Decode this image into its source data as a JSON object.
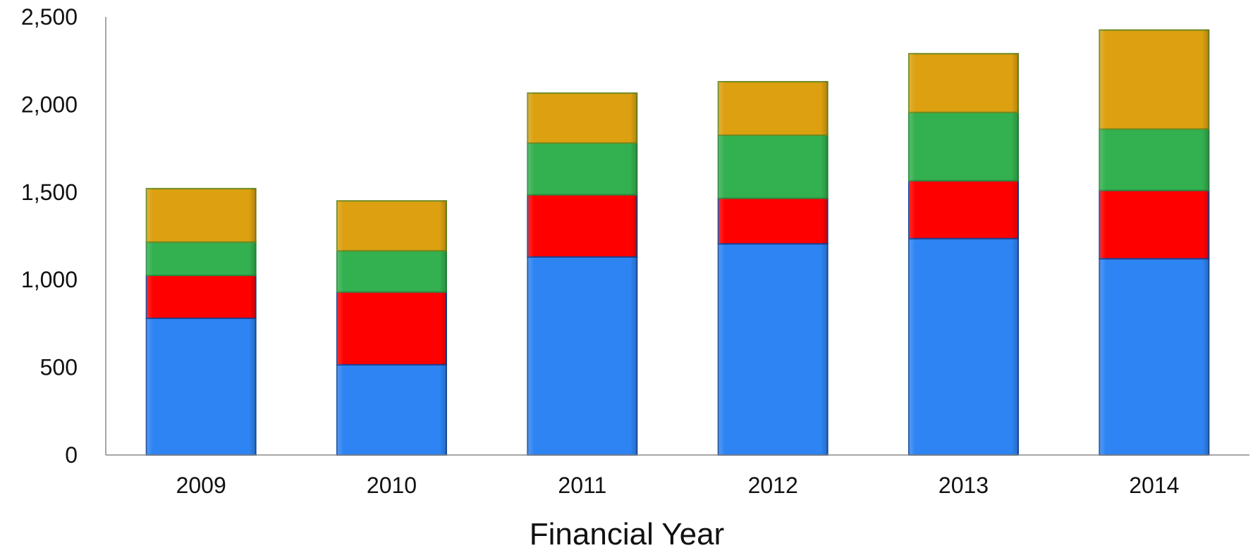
{
  "chart_data": {
    "type": "bar",
    "stacked": true,
    "title": "",
    "xlabel": "Financial Year",
    "ylabel": "",
    "ylim": [
      0,
      2500
    ],
    "yticks": [
      0,
      500,
      1000,
      1500,
      2000,
      2500
    ],
    "ytick_labels": [
      "0",
      "500",
      "1,000",
      "1,500",
      "2,000",
      "2,500"
    ],
    "categories": [
      "2009",
      "2010",
      "2011",
      "2012",
      "2013",
      "2014"
    ],
    "grid": false,
    "legend": "none",
    "series": [
      {
        "values": [
          780,
          515,
          1130,
          1205,
          1235,
          1120
        ],
        "color": "#2e84f2",
        "edge": "#1f4f9e"
      },
      {
        "values": [
          245,
          415,
          355,
          260,
          330,
          390
        ],
        "color": "#ff0000",
        "edge": "#1f3f8e"
      },
      {
        "values": [
          190,
          235,
          295,
          360,
          390,
          350
        ],
        "color": "#33b04f",
        "edge": "#2a8a40"
      },
      {
        "values": [
          305,
          285,
          285,
          305,
          335,
          565
        ],
        "color": "#dca010",
        "edge": "#6f8a20"
      }
    ]
  }
}
